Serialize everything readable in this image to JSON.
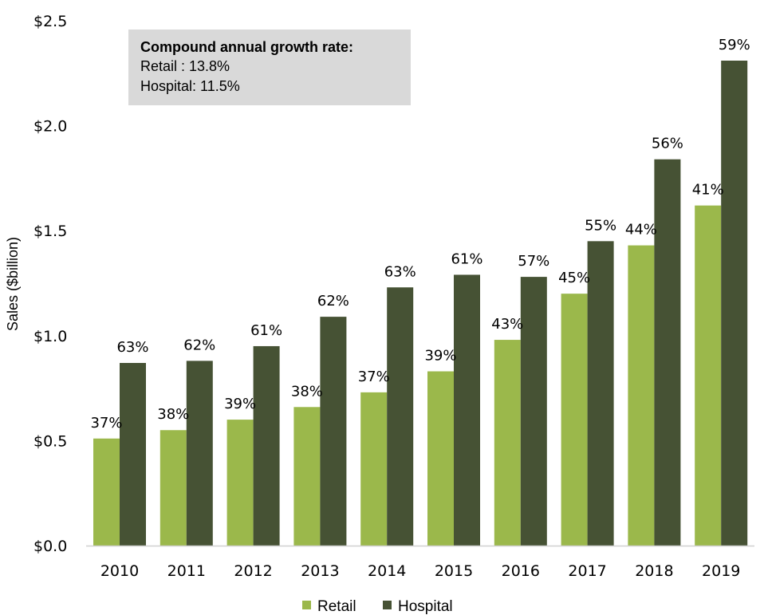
{
  "chart_data": {
    "type": "bar",
    "title": "",
    "xlabel": "",
    "ylabel": "Sales ($billion)",
    "ylim": [
      0,
      2.5
    ],
    "yticks": [
      0,
      0.5,
      1.0,
      1.5,
      2.0,
      2.5
    ],
    "ytick_labels": [
      "$0.0",
      "$0.5",
      "$1.0",
      "$1.5",
      "$2.0",
      "$2.5"
    ],
    "grid": false,
    "legend_position": "bottom-center",
    "categories": [
      "2010",
      "2011",
      "2012",
      "2013",
      "2014",
      "2015",
      "2016",
      "2017",
      "2018",
      "2019"
    ],
    "series": [
      {
        "name": "Retail",
        "color": "#9bb84b",
        "values": [
          0.51,
          0.55,
          0.6,
          0.66,
          0.73,
          0.83,
          0.98,
          1.2,
          1.43,
          1.62
        ],
        "labels": [
          "37%",
          "38%",
          "39%",
          "38%",
          "37%",
          "39%",
          "43%",
          "45%",
          "44%",
          "41%"
        ]
      },
      {
        "name": "Hospital",
        "color": "#465234",
        "values": [
          0.87,
          0.88,
          0.95,
          1.09,
          1.23,
          1.29,
          1.28,
          1.45,
          1.84,
          2.31
        ],
        "labels": [
          "63%",
          "62%",
          "61%",
          "62%",
          "63%",
          "61%",
          "57%",
          "55%",
          "56%",
          "59%"
        ]
      }
    ],
    "annotation": {
      "title": "Compound annual growth rate:",
      "lines": [
        "Retail : 13.8%",
        "Hospital: 11.5%"
      ]
    }
  }
}
